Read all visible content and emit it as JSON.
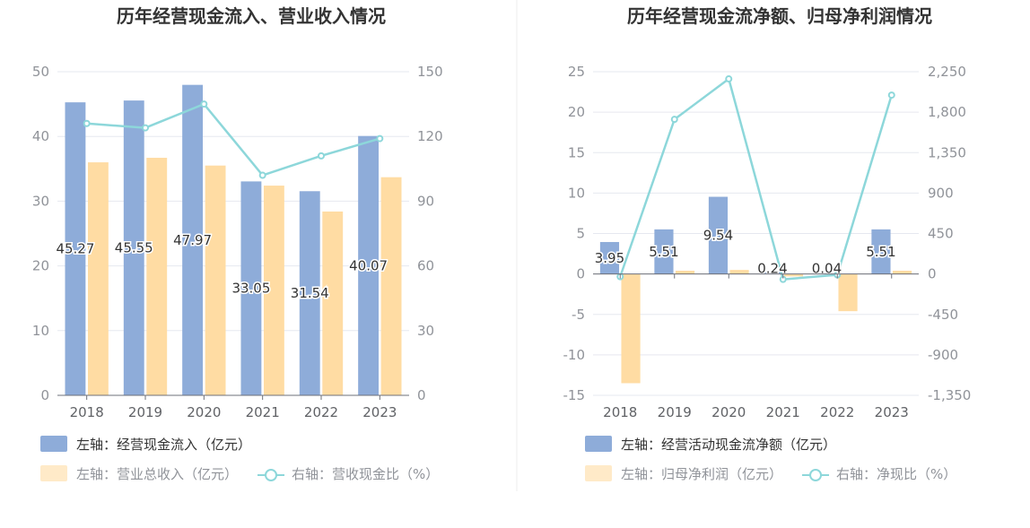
{
  "chart_data": [
    {
      "type": "bar",
      "title": "历年经营现金流入、营业收入情况",
      "categories": [
        "2018",
        "2019",
        "2020",
        "2021",
        "2022",
        "2023"
      ],
      "left_ylim": [
        0,
        50
      ],
      "left_yticks": [
        "0",
        "10",
        "20",
        "30",
        "40",
        "50"
      ],
      "right_ylim": [
        0,
        150
      ],
      "right_yticks": [
        "0",
        "30",
        "60",
        "90",
        "120",
        "150"
      ],
      "series": [
        {
          "name": "左轴：经营现金流入（亿元）",
          "kind": "bar",
          "axis": "left",
          "color": "#8eacd9",
          "values": [
            45.27,
            45.55,
            47.97,
            33.05,
            31.54,
            40.07
          ],
          "labels": [
            "45.27",
            "45.55",
            "47.97",
            "33.05",
            "31.54",
            "40.07"
          ]
        },
        {
          "name": "左轴：营业总收入（亿元）",
          "kind": "bar",
          "axis": "left",
          "color": "#ffdca3",
          "values": [
            36.0,
            36.7,
            35.5,
            32.4,
            28.4,
            33.7
          ]
        },
        {
          "name": "右轴：营收现金比（%）",
          "kind": "line",
          "axis": "right",
          "color": "#8dd7da",
          "values": [
            126,
            124,
            135,
            102,
            111,
            119
          ]
        }
      ]
    },
    {
      "type": "bar",
      "title": "历年经营现金流净额、归母净利润情况",
      "categories": [
        "2018",
        "2019",
        "2020",
        "2021",
        "2022",
        "2023"
      ],
      "left_ylim": [
        -15,
        25
      ],
      "left_yticks": [
        "-15",
        "-10",
        "-5",
        "0",
        "5",
        "10",
        "15",
        "20",
        "25"
      ],
      "right_ylim": [
        -1350,
        2250
      ],
      "right_yticks": [
        "-1,350",
        "-900",
        "-450",
        "0",
        "450",
        "900",
        "1,350",
        "1,800",
        "2,250"
      ],
      "series": [
        {
          "name": "左轴：经营活动现金流净额（亿元）",
          "kind": "bar",
          "axis": "left",
          "color": "#8eacd9",
          "values": [
            3.95,
            5.51,
            9.54,
            0.24,
            0.04,
            5.51
          ],
          "labels": [
            "3.95",
            "5.51",
            "9.54",
            "0.24",
            "0.04",
            "5.51"
          ]
        },
        {
          "name": "左轴：归母净利润（亿元）",
          "kind": "bar",
          "axis": "left",
          "color": "#ffdca3",
          "values": [
            -13.5,
            0.4,
            0.5,
            -0.3,
            -4.6,
            0.4
          ]
        },
        {
          "name": "右轴：净现比（%）",
          "kind": "line",
          "axis": "right",
          "color": "#8dd7da",
          "values": [
            -30,
            1720,
            2170,
            -60,
            -10,
            1990
          ]
        }
      ]
    }
  ]
}
